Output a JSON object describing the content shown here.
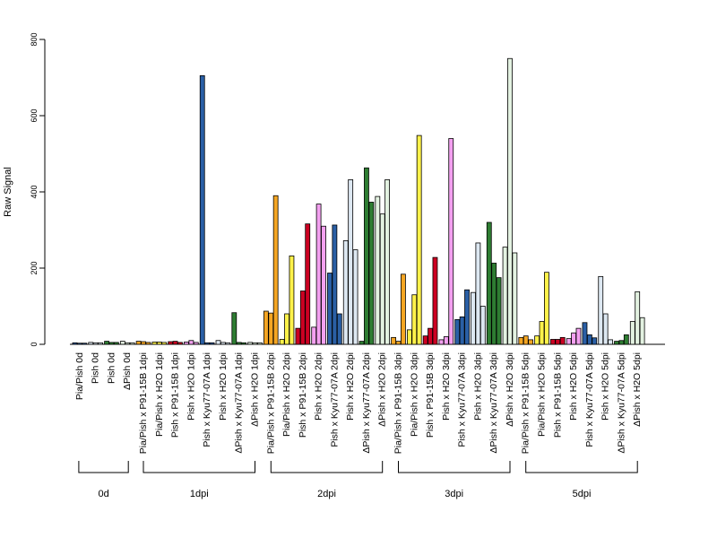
{
  "chart_data": {
    "type": "bar",
    "title": "",
    "xlabel": "",
    "ylabel": "Raw Signal",
    "ylim": [
      0,
      800
    ],
    "yticks": [
      0,
      200,
      400,
      600,
      800
    ],
    "grid": false,
    "bars_per_category": 3,
    "categories": [
      "Pia/Pish 0d",
      "Pish 0d",
      "Pish 0d",
      "ΔPish 0d",
      "Pia/Pish x P91-15B 1dpi",
      "Pia/Pish x H2O 1dpi",
      "Pish x P91-15B 1dpi",
      "Pish x H2O 1dpi",
      "Pish x Kyu77-07A 1dpi",
      "Pish x H2O 1dpi",
      "ΔPish x Kyu77-07A 1dpi",
      "ΔPish x H2O 1dpi",
      "Pia/Pish x P91-15B 2dpi",
      "Pia/Pish x H2O 2dpi",
      "Pish x P91-15B 2dpi",
      "Pish x H2O 2dpi",
      "Pish x Kyu77-07A 2dpi",
      "Pish x H2O 2dpi",
      "ΔPish x Kyu77-07A 2dpi",
      "ΔPish x H2O 2dpi",
      "Pia/Pish x P91-15B 3dpi",
      "Pia/Pish x H2O 3dpi",
      "Pish x P91-15B 3dpi",
      "Pish x H2O 3dpi",
      "Pish x Kyu77-07A 3dpi",
      "Pish x H2O 3dpi",
      "ΔPish x Kyu77-07A 3dpi",
      "ΔPish x H2O 3dpi",
      "Pia/Pish x P91-15B 5dpi",
      "Pia/Pish x H2O 5dpi",
      "Pish x P91-15B 5dpi",
      "Pish x H2O 5dpi",
      "Pish x Kyu77-07A 5dpi",
      "Pish x H2O 5dpi",
      "ΔPish x Kyu77-07A 5dpi",
      "ΔPish x H2O 5dpi"
    ],
    "colors": [
      "#2a5fa5",
      "#dde8f2",
      "#2e7d32",
      "#e3f2e1",
      "#f5a623",
      "#fff24a",
      "#cc0022",
      "#f3a0f0",
      "#2a5fa5",
      "#dde8f2",
      "#2e7d32",
      "#e3f2e1",
      "#f5a623",
      "#fff24a",
      "#cc0022",
      "#f3a0f0",
      "#2a5fa5",
      "#dde8f2",
      "#2e7d32",
      "#e3f2e1",
      "#f5a623",
      "#fff24a",
      "#cc0022",
      "#f3a0f0",
      "#2a5fa5",
      "#dde8f2",
      "#2e7d32",
      "#e3f2e1",
      "#f5a623",
      "#fff24a",
      "#cc0022",
      "#f3a0f0",
      "#2a5fa5",
      "#dde8f2",
      "#2e7d32",
      "#e3f2e1",
      "#f5a623",
      "#fff24a",
      "#cc0022",
      "#f3a0f0"
    ],
    "values": [
      [
        4,
        3,
        3
      ],
      [
        5,
        4,
        4
      ],
      [
        8,
        5,
        5
      ],
      [
        8,
        4,
        4
      ],
      [
        8,
        7,
        5
      ],
      [
        6,
        6,
        5
      ],
      [
        7,
        8,
        5
      ],
      [
        6,
        10,
        5
      ],
      [
        705,
        4,
        4
      ],
      [
        10,
        5,
        4
      ],
      [
        83,
        5,
        4
      ],
      [
        5,
        4,
        4
      ],
      [
        87,
        82,
        390
      ],
      [
        13,
        80,
        232
      ],
      [
        42,
        140,
        316
      ],
      [
        45,
        368,
        310
      ],
      [
        187,
        313,
        80
      ],
      [
        272,
        432,
        248
      ],
      [
        8,
        463,
        373
      ],
      [
        388,
        342,
        432
      ],
      [
        18,
        8,
        184
      ],
      [
        38,
        130,
        548
      ],
      [
        22,
        42,
        228
      ],
      [
        12,
        20,
        540
      ],
      [
        65,
        72,
        143
      ],
      [
        136,
        266,
        100
      ],
      [
        320,
        213,
        175
      ],
      [
        255,
        750,
        240
      ],
      [
        18,
        22,
        12
      ],
      [
        22,
        60,
        189
      ],
      [
        13,
        13,
        18
      ],
      [
        15,
        30,
        42
      ],
      [
        57,
        25,
        17
      ],
      [
        178,
        80,
        12
      ],
      [
        8,
        10,
        25
      ],
      [
        60,
        138,
        70
      ]
    ],
    "groups": [
      {
        "label": "0d",
        "count": 4
      },
      {
        "label": "1dpi",
        "count": 8
      },
      {
        "label": "2dpi",
        "count": 8
      },
      {
        "label": "3dpi",
        "count": 8
      },
      {
        "label": "5dpi",
        "count": 8
      }
    ]
  }
}
